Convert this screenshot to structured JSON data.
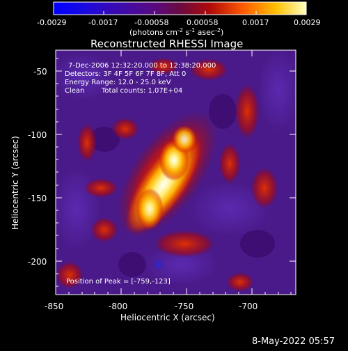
{
  "colorbar": {
    "tick_labels": [
      "-0.0029",
      "-0.0017",
      "-0.00058",
      "0.00058",
      "0.0017",
      "0.0029"
    ],
    "units_text": "(photons cm",
    "units_sup1": "-2",
    "units_mid1": " s",
    "units_sup2": "-1",
    "units_mid2": " asec",
    "units_sup3": "-2",
    "units_end": ")"
  },
  "title": "Reconstructed RHESSI Image",
  "annotations": {
    "time_range": "7-Dec-2006 12:32:20.000 to 12:38:20.000",
    "detectors": "Detectors: 3F 4F 5F 6F 7F 8F, Att 0",
    "energy": "Energy Range: 12.0 - 25.0 keV",
    "clean_label": "Clean",
    "counts": "Total counts: 1.07E+04",
    "peak": "Position of Peak = [-759,-123]"
  },
  "axes": {
    "xlabel": "Heliocentric X (arcsec)",
    "ylabel": "Heliocentric Y (arcsec)",
    "x_ticks": [
      "-850",
      "-800",
      "-750",
      "-700"
    ],
    "y_ticks": [
      "-50",
      "-100",
      "-150",
      "-200"
    ]
  },
  "footer_date": "8-May-2022 05:57",
  "colors": {
    "background": "#000000",
    "text": "#ffffff",
    "colormap": [
      "#0000ff",
      "#2b0abf",
      "#4a0a8a",
      "#6a1a9a",
      "#8a0a3a",
      "#b00a0a",
      "#e04000",
      "#ff8a00",
      "#ffd000",
      "#ffffff"
    ]
  }
}
